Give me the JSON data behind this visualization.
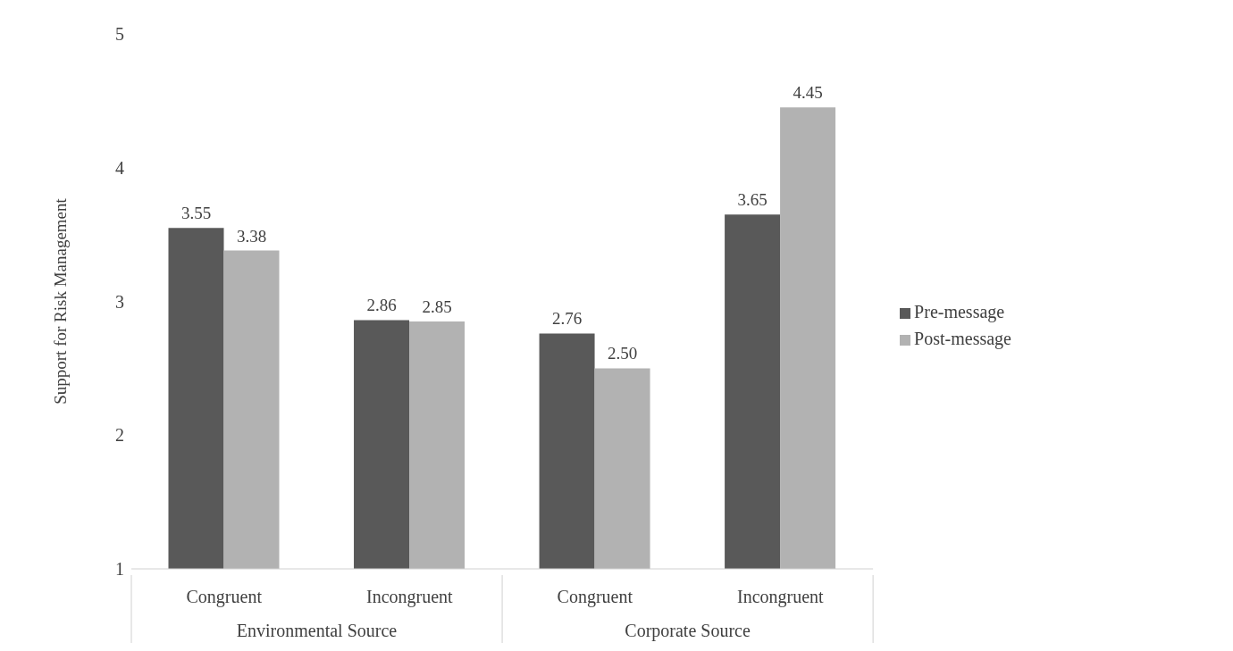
{
  "chart_data": {
    "type": "bar",
    "ylabel": "Support for Risk Management",
    "categories": [
      "Congruent",
      "Incongruent",
      "Congruent",
      "Incongruent"
    ],
    "series": [
      {
        "name": "Pre-message",
        "color": "#595959",
        "values": [
          3.55,
          2.86,
          2.76,
          3.65
        ],
        "value_labels": [
          "3.55",
          "2.86",
          "2.76",
          "3.65"
        ]
      },
      {
        "name": "Post-message",
        "color": "#b2b2b2",
        "values": [
          3.38,
          2.85,
          2.5,
          4.45
        ],
        "value_labels": [
          "3.38",
          "2.85",
          "2.50",
          "4.45"
        ]
      }
    ],
    "ylim": [
      1,
      5
    ],
    "yticks": [
      1,
      2,
      3,
      4,
      5
    ],
    "grid": false,
    "legend": "right",
    "annotations": [
      "Environmental Source",
      "Corporate Source"
    ]
  }
}
